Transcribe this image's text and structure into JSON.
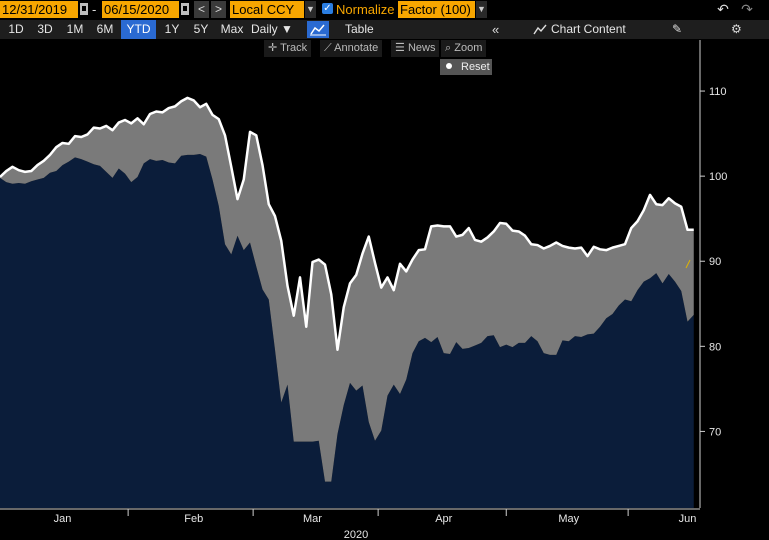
{
  "toolbar": {
    "start_date": "12/31/2019",
    "date_sep": "-",
    "end_date": "06/15/2020",
    "prev": "<",
    "next": ">",
    "currency": "Local CCY",
    "normalize_checked": true,
    "normalize_label": "Normalize",
    "factor": "Factor (100)",
    "undo_icon": "undo-icon",
    "redo_icon": "redo-icon"
  },
  "ranges": [
    "1D",
    "3D",
    "1M",
    "6M",
    "YTD",
    "1Y",
    "5Y",
    "Max"
  ],
  "active_range": "YTD",
  "controls": {
    "daily": "Daily ▼",
    "table": "Table",
    "chart_content": "Chart Content",
    "track": "Track",
    "annotate": "Annotate",
    "news": "News",
    "zoom": "Zoom",
    "reset": "Reset"
  },
  "colors": {
    "background": "#000000",
    "area_fill": "#0b1d3a",
    "gap_fill": "#7a7a7a",
    "upper_line": "#ffffff",
    "toolbar_field": "#f7a600",
    "active_tab": "#2a6ad2"
  },
  "chart_data": {
    "type": "area",
    "x_unit": "trading days from 12/31/2019",
    "x_ticks": [
      {
        "label": "Jan",
        "x": 10
      },
      {
        "label": "Feb",
        "x": 31
      },
      {
        "label": "Mar",
        "x": 50
      },
      {
        "label": "Apr",
        "x": 71
      },
      {
        "label": "May",
        "x": 91
      },
      {
        "label": "Jun",
        "x": 110
      }
    ],
    "year_label": "2020",
    "y_ticks": [
      70,
      80,
      90,
      100,
      110
    ],
    "ylim": [
      61,
      116
    ],
    "xlim": [
      0,
      112
    ],
    "grid": false,
    "series": [
      {
        "values_x": [
          0,
          1,
          2,
          3,
          4,
          5,
          6,
          7,
          8,
          9,
          10,
          11,
          12,
          13,
          14,
          15,
          16,
          17,
          18,
          19,
          20,
          21,
          22,
          23,
          24,
          25,
          26,
          27,
          28,
          29,
          30,
          31,
          32,
          33,
          34,
          35,
          36,
          37,
          38,
          39,
          40,
          41,
          42,
          43,
          44,
          45,
          46,
          47,
          48,
          49,
          50,
          51,
          52,
          53,
          54,
          55,
          56,
          57,
          58,
          59,
          60,
          61,
          62,
          63,
          64,
          65,
          66,
          67,
          68,
          69,
          70,
          71,
          72,
          73,
          74,
          75,
          76,
          77,
          78,
          79,
          80,
          81,
          82,
          83,
          84,
          85,
          86,
          87,
          88,
          89,
          90,
          91,
          92,
          93,
          94,
          95,
          96,
          97,
          98,
          99,
          100,
          101,
          102,
          103,
          104,
          105,
          106,
          107,
          108,
          109,
          110,
          111
        ],
        "values": [
          99.9,
          100.6,
          101.1,
          100.7,
          100.5,
          100.6,
          101.3,
          101.8,
          102.5,
          103.4,
          103.9,
          103.8,
          104.7,
          104.6,
          104.9,
          105.7,
          105.6,
          105.9,
          105.4,
          106.3,
          106.6,
          106.2,
          106.8,
          106.1,
          107.3,
          107.6,
          107.5,
          108.0,
          108.2,
          108.8,
          109.2,
          108.9,
          108.1,
          108.5,
          107.2,
          106.7,
          104.8,
          101.1,
          97.3,
          99.6,
          105.2,
          104.8,
          101.3,
          96.7,
          95.3,
          92.4,
          87.1,
          83.6,
          88.1,
          82.3,
          89.9,
          90.2,
          89.6,
          86.1,
          79.6,
          84.6,
          87.4,
          88.4,
          90.9,
          92.9,
          89.8,
          86.9,
          88.1,
          86.6,
          89.7,
          88.8,
          90.2,
          91.3,
          91.4,
          94.1,
          94.2,
          94.1,
          94.1,
          92.9,
          93.1,
          93.9,
          92.5,
          92.3,
          92.8,
          93.5,
          94.5,
          94.4,
          93.6,
          93.5,
          93.0,
          92.0,
          91.9,
          91.5,
          91.8,
          92.2,
          91.8,
          91.6,
          91.5,
          91.6,
          90.6,
          91.7,
          91.4,
          91.3,
          91.6,
          91.8,
          92.0,
          93.9,
          94.7,
          96.0,
          97.8,
          96.7,
          96.6,
          97.4,
          96.8,
          96.4,
          93.7,
          93.7
        ]
      },
      {
        "values_x": [
          0,
          1,
          2,
          3,
          4,
          5,
          6,
          7,
          8,
          9,
          10,
          11,
          12,
          13,
          14,
          15,
          16,
          17,
          18,
          19,
          20,
          21,
          22,
          23,
          24,
          25,
          26,
          27,
          28,
          29,
          30,
          31,
          32,
          33,
          34,
          35,
          36,
          37,
          38,
          39,
          40,
          41,
          42,
          43,
          44,
          45,
          46,
          47,
          48,
          49,
          50,
          51,
          52,
          53,
          54,
          55,
          56,
          57,
          58,
          59,
          60,
          61,
          62,
          63,
          64,
          65,
          66,
          67,
          68,
          69,
          70,
          71,
          72,
          73,
          74,
          75,
          76,
          77,
          78,
          79,
          80,
          81,
          82,
          83,
          84,
          85,
          86,
          87,
          88,
          89,
          90,
          91,
          92,
          93,
          94,
          95,
          96,
          97,
          98,
          99,
          100,
          101,
          102,
          103,
          104,
          105,
          106,
          107,
          108,
          109,
          110,
          111
        ],
        "values": [
          99.8,
          99.3,
          99.1,
          99.2,
          99.1,
          99.4,
          99.6,
          99.8,
          100.4,
          100.6,
          101.3,
          101.7,
          102.2,
          102.0,
          101.7,
          101.4,
          101.2,
          100.5,
          99.8,
          100.9,
          100.3,
          99.3,
          99.9,
          101.5,
          102.0,
          101.8,
          101.9,
          101.6,
          101.5,
          102.4,
          102.5,
          102.5,
          102.6,
          102.3,
          99.6,
          96.5,
          92.0,
          90.8,
          93.0,
          91.3,
          92.2,
          89.4,
          86.7,
          85.5,
          79.6,
          73.4,
          75.5,
          68.8,
          68.8,
          68.8,
          68.8,
          68.9,
          64.1,
          64.1,
          69.7,
          73.1,
          75.7,
          74.8,
          75.4,
          71.1,
          68.9,
          70.1,
          74.2,
          75.5,
          74.4,
          76.1,
          79.2,
          80.6,
          81.0,
          80.5,
          81.1,
          79.2,
          79.1,
          80.5,
          79.7,
          79.8,
          80.1,
          80.4,
          81.2,
          81.3,
          79.9,
          80.2,
          79.9,
          80.4,
          80.4,
          81.2,
          80.6,
          79.2,
          79.0,
          79.0,
          80.7,
          80.6,
          81.2,
          81.1,
          81.4,
          81.5,
          82.3,
          83.3,
          83.8,
          84.8,
          85.5,
          85.3,
          86.6,
          87.6,
          88.0,
          88.6,
          87.4,
          88.5,
          87.6,
          86.5,
          82.9,
          83.7
        ]
      }
    ]
  }
}
